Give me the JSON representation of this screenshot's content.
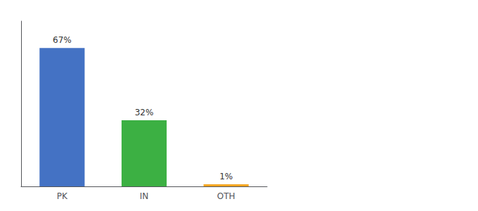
{
  "chart_data": {
    "type": "bar",
    "categories": [
      "PK",
      "IN",
      "OTH"
    ],
    "values": [
      67,
      32,
      1
    ],
    "value_labels": [
      "67%",
      "32%",
      "1%"
    ],
    "data_labels": true,
    "colors": [
      "#4472c4",
      "#3cb043",
      "#f5a623"
    ],
    "ylim": [
      0,
      80
    ],
    "grid": false,
    "tick_labels": "x"
  }
}
